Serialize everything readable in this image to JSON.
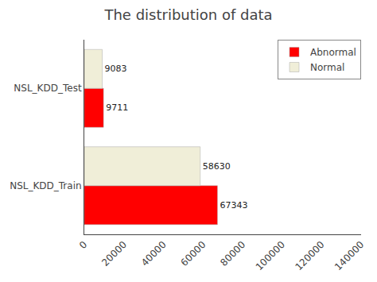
{
  "chart_data": {
    "type": "bar",
    "orientation": "horizontal",
    "title": "The distribution of data",
    "categories": [
      "NSL_KDD_Train",
      "NSL_KDD_Test"
    ],
    "series": [
      {
        "name": "Abnormal",
        "color": "#ff0000",
        "values": [
          67343,
          9711
        ]
      },
      {
        "name": "Normal",
        "color": "#f0eed8",
        "values": [
          58630,
          9083
        ]
      }
    ],
    "xlim": [
      0,
      140000
    ],
    "xticks": [
      0,
      20000,
      40000,
      60000,
      80000,
      100000,
      120000,
      140000
    ],
    "data_labels": true,
    "legend": "upper right",
    "grid": false
  }
}
